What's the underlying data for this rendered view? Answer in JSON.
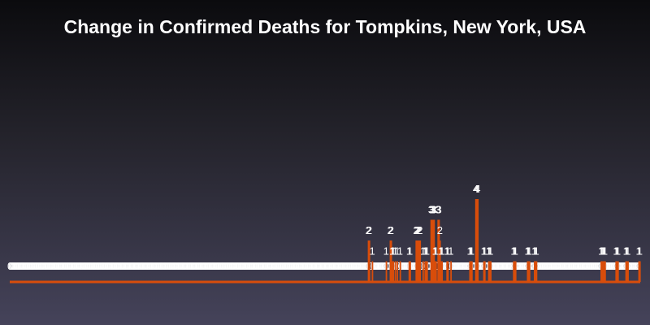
{
  "chart_data": {
    "type": "bar",
    "title": "Change in Confirmed Deaths for Tompkins, New York, USA",
    "xlabel": "",
    "ylabel": "",
    "ylim": [
      0,
      4
    ],
    "grid": false,
    "legend": "none",
    "bar_color": "#d84d0b",
    "values": [
      0,
      0,
      0,
      0,
      0,
      0,
      0,
      0,
      0,
      0,
      0,
      0,
      0,
      0,
      0,
      0,
      0,
      0,
      0,
      0,
      0,
      0,
      0,
      0,
      0,
      0,
      0,
      0,
      0,
      0,
      0,
      0,
      0,
      0,
      0,
      0,
      0,
      0,
      0,
      0,
      0,
      0,
      0,
      0,
      0,
      0,
      0,
      0,
      0,
      0,
      0,
      0,
      0,
      0,
      0,
      0,
      0,
      0,
      0,
      0,
      0,
      0,
      0,
      0,
      0,
      0,
      0,
      0,
      0,
      0,
      0,
      0,
      0,
      0,
      0,
      0,
      0,
      0,
      0,
      0,
      0,
      0,
      0,
      0,
      0,
      0,
      0,
      0,
      0,
      0,
      0,
      0,
      0,
      0,
      0,
      0,
      0,
      0,
      0,
      0,
      0,
      0,
      0,
      0,
      0,
      0,
      0,
      0,
      0,
      0,
      0,
      0,
      0,
      0,
      0,
      0,
      0,
      0,
      0,
      0,
      0,
      0,
      0,
      0,
      0,
      0,
      0,
      0,
      0,
      0,
      0,
      0,
      0,
      0,
      0,
      0,
      0,
      0,
      0,
      0,
      0,
      0,
      0,
      0,
      0,
      0,
      0,
      0,
      0,
      0,
      0,
      0,
      0,
      0,
      0,
      0,
      0,
      0,
      0,
      0,
      0,
      0,
      0,
      0,
      0,
      0,
      0,
      0,
      0,
      0,
      0,
      0,
      0,
      0,
      0,
      0,
      0,
      0,
      0,
      0,
      0,
      0,
      0,
      0,
      0,
      0,
      0,
      0,
      0,
      0,
      0,
      0,
      0,
      0,
      0,
      0,
      0,
      0,
      0,
      0,
      0,
      0,
      0,
      0,
      0,
      0,
      0,
      0,
      0,
      0,
      0,
      0,
      0,
      0,
      0,
      0,
      0,
      0,
      0,
      0,
      0,
      0,
      0,
      0,
      0,
      0,
      0,
      0,
      0,
      0,
      0,
      0,
      0,
      0,
      0,
      0,
      0,
      0,
      0,
      0,
      0,
      0,
      0,
      0,
      0,
      0,
      0,
      0,
      0,
      0,
      0,
      0,
      0,
      0,
      0,
      0,
      0,
      0,
      0,
      0,
      0,
      0,
      0,
      0,
      0,
      0,
      0,
      0,
      0,
      0,
      0,
      0,
      0,
      0,
      0,
      0,
      0,
      0,
      0,
      0,
      0,
      0,
      0,
      0,
      0,
      0,
      0,
      0,
      0,
      0,
      0,
      0,
      0,
      0,
      0,
      0,
      0,
      0,
      0,
      0,
      0,
      0,
      0,
      0,
      0,
      0,
      0,
      0,
      0,
      0,
      0,
      0,
      0,
      0,
      0,
      0,
      0,
      0,
      0,
      0,
      0,
      0,
      0,
      0,
      0,
      0,
      0,
      0,
      0,
      0,
      0,
      0,
      0,
      0,
      0,
      0,
      0,
      0,
      0,
      0,
      0,
      0,
      0,
      0,
      0,
      0,
      0,
      0,
      0,
      0,
      0,
      0,
      0,
      0,
      0,
      0,
      0,
      0,
      0,
      0,
      2,
      2,
      0,
      0,
      1,
      0,
      0,
      0,
      0,
      0,
      0,
      0,
      0,
      0,
      0,
      0,
      0,
      0,
      1,
      0,
      0,
      0,
      2,
      2,
      1,
      1,
      0,
      1,
      0,
      1,
      0,
      0,
      1,
      0,
      0,
      0,
      0,
      0,
      0,
      0,
      0,
      1,
      1,
      0,
      0,
      0,
      0,
      0,
      2,
      2,
      2,
      2,
      2,
      0,
      0,
      1,
      0,
      1,
      1,
      1,
      0,
      0,
      0,
      3,
      3,
      3,
      3,
      1,
      1,
      0,
      3,
      3,
      2,
      1,
      1,
      0,
      0,
      0,
      0,
      1,
      1,
      0,
      0,
      1,
      0,
      0,
      0,
      0,
      0,
      0,
      0,
      0,
      0,
      0,
      0,
      0,
      0,
      0,
      0,
      0,
      0,
      0,
      1,
      1,
      1,
      0,
      0,
      0,
      4,
      4,
      4,
      0,
      0,
      0,
      0,
      0,
      1,
      1,
      0,
      0,
      0,
      1,
      1,
      1,
      0,
      0,
      0,
      0,
      0,
      0,
      0,
      0,
      0,
      0,
      0,
      0,
      0,
      0,
      0,
      0,
      0,
      0,
      0,
      0,
      0,
      0,
      1,
      1,
      1,
      0,
      0,
      0,
      0,
      0,
      0,
      0,
      0,
      0,
      0,
      0,
      1,
      1,
      1,
      0,
      0,
      0,
      0,
      1,
      1,
      1,
      0,
      0,
      0,
      0,
      0,
      0,
      0,
      0,
      0,
      0,
      0,
      0,
      0,
      0,
      0,
      0,
      0,
      0,
      0,
      0,
      0,
      0,
      0,
      0,
      0,
      0,
      0,
      0,
      0,
      0,
      0,
      0,
      0,
      0,
      0,
      0,
      0,
      0,
      0,
      0,
      0,
      0,
      0,
      0,
      0,
      0,
      0,
      0,
      0,
      0,
      0,
      0,
      0,
      0,
      0,
      0,
      0,
      0,
      0,
      0,
      0,
      0,
      0,
      0,
      1,
      1,
      1,
      1,
      1,
      0,
      0,
      0,
      0,
      0,
      0,
      0,
      0,
      0,
      0,
      1,
      1,
      1,
      0,
      0,
      0,
      0,
      0,
      0,
      0,
      1,
      1,
      1,
      0,
      0,
      0,
      0,
      0,
      0,
      0,
      0,
      0,
      0,
      1,
      1
    ]
  }
}
